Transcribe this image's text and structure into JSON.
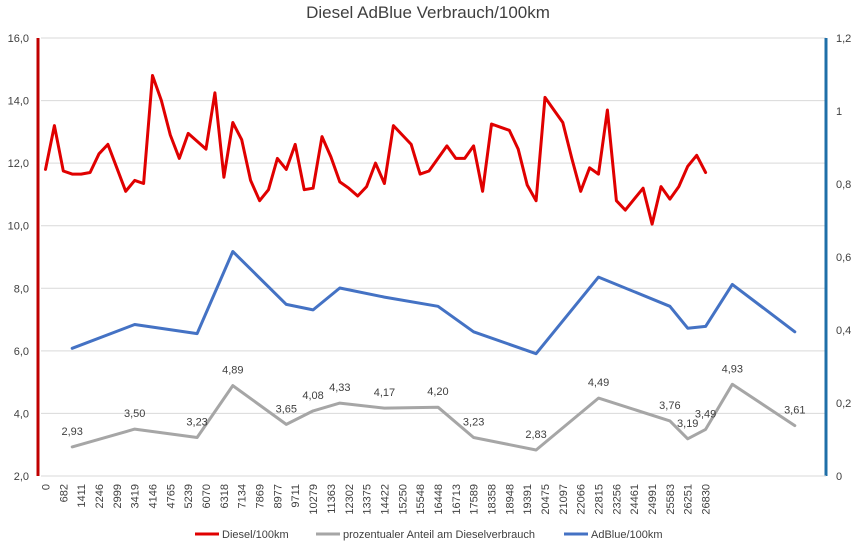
{
  "chart_data": {
    "type": "line",
    "title": "Diesel AdBlue Verbrauch/100km",
    "x_categories": [
      "0",
      "",
      "682",
      "",
      "1411",
      "",
      "2246",
      "",
      "2999",
      "",
      "3419",
      "",
      "4146",
      "",
      "4765",
      "",
      "5239",
      "",
      "6070",
      "",
      "6318",
      "",
      "7134",
      "",
      "7869",
      "",
      "8977",
      "",
      "9711",
      "",
      "10279",
      "",
      "11363",
      "",
      "12302",
      "",
      "13375",
      "",
      "14422",
      "",
      "15250",
      "",
      "15548",
      "",
      "16448",
      "",
      "16713",
      "",
      "17589",
      "",
      "18358",
      "",
      "18948",
      "",
      "19391",
      "",
      "20475",
      "",
      "21097",
      "",
      "22066",
      "",
      "22815",
      "",
      "23256",
      "",
      "24461",
      "",
      "24991",
      "",
      "25583",
      "",
      "26251",
      "",
      "26830",
      ""
    ],
    "x_tick_labels": [
      "0",
      "682",
      "1411",
      "2246",
      "2999",
      "3419",
      "4146",
      "4765",
      "5239",
      "6070",
      "6318",
      "7134",
      "7869",
      "8977",
      "9711",
      "10279",
      "11363",
      "12302",
      "13375",
      "14422",
      "15250",
      "15548",
      "16448",
      "16713",
      "17589",
      "18358",
      "18948",
      "19391",
      "20475",
      "21097",
      "22066",
      "22815",
      "23256",
      "24461",
      "24991",
      "25583",
      "26251",
      "26830"
    ],
    "y_left": {
      "range": [
        2.0,
        16.0
      ],
      "ticks": [
        "2,0",
        "4,0",
        "6,0",
        "8,0",
        "10,0",
        "12,0",
        "14,0",
        "16,0"
      ],
      "color": "#c00000"
    },
    "y_right": {
      "range": [
        0,
        1.2
      ],
      "ticks": [
        "0",
        "0,2",
        "0,4",
        "0,6",
        "0,8",
        "1",
        "1,2"
      ],
      "color": "#1f6fa8"
    },
    "grid": "horizontal",
    "legend_position": "bottom",
    "series": [
      {
        "name": "Diesel/100km",
        "axis": "left",
        "color": "#e00000",
        "points": [
          [
            1,
            11.8
          ],
          [
            2,
            13.2
          ],
          [
            3,
            11.75
          ],
          [
            4,
            11.65
          ],
          [
            5,
            11.65
          ],
          [
            6,
            11.7
          ],
          [
            7,
            12.3
          ],
          [
            8,
            12.6
          ],
          [
            9,
            11.85
          ],
          [
            10,
            11.1
          ],
          [
            11,
            11.45
          ],
          [
            12,
            11.35
          ],
          [
            13,
            14.8
          ],
          [
            14,
            14.0
          ],
          [
            15,
            12.9
          ],
          [
            16,
            12.15
          ],
          [
            17,
            12.95
          ],
          [
            18,
            12.7
          ],
          [
            19,
            12.45
          ],
          [
            20,
            14.25
          ],
          [
            21,
            11.55
          ],
          [
            22,
            13.3
          ],
          [
            23,
            12.75
          ],
          [
            24,
            11.45
          ],
          [
            25,
            10.8
          ],
          [
            26,
            11.15
          ],
          [
            27,
            12.15
          ],
          [
            28,
            11.8
          ],
          [
            29,
            12.6
          ],
          [
            30,
            11.15
          ],
          [
            31,
            11.2
          ],
          [
            32,
            12.85
          ],
          [
            33,
            12.2
          ],
          [
            34,
            11.4
          ],
          [
            35,
            11.2
          ],
          [
            36,
            10.95
          ],
          [
            37,
            11.25
          ],
          [
            38,
            12.0
          ],
          [
            39,
            11.35
          ],
          [
            40,
            13.2
          ],
          [
            41,
            12.9
          ],
          [
            42,
            12.6
          ],
          [
            43,
            11.65
          ],
          [
            44,
            11.75
          ],
          [
            45,
            12.15
          ],
          [
            46,
            12.55
          ],
          [
            47,
            12.15
          ],
          [
            48,
            12.15
          ],
          [
            49,
            12.55
          ],
          [
            50,
            11.1
          ],
          [
            51,
            13.25
          ],
          [
            52,
            13.15
          ],
          [
            53,
            13.05
          ],
          [
            54,
            12.45
          ],
          [
            55,
            11.3
          ],
          [
            56,
            10.8
          ],
          [
            57,
            14.1
          ],
          [
            58,
            13.7
          ],
          [
            59,
            13.3
          ],
          [
            60,
            12.15
          ],
          [
            61,
            11.1
          ],
          [
            62,
            11.85
          ],
          [
            63,
            11.65
          ],
          [
            64,
            13.7
          ],
          [
            65,
            10.8
          ],
          [
            66,
            10.5
          ],
          [
            67,
            10.85
          ],
          [
            68,
            11.2
          ],
          [
            69,
            10.05
          ],
          [
            70,
            11.25
          ],
          [
            71,
            10.85
          ],
          [
            72,
            11.25
          ],
          [
            73,
            11.9
          ],
          [
            74,
            12.25
          ],
          [
            75,
            11.7
          ]
        ]
      },
      {
        "name": "prozentualer Anteil am Dieselverbrauch",
        "axis": "left",
        "color": "#a6a6a6",
        "points": [
          [
            4,
            2.93
          ],
          [
            11,
            3.5
          ],
          [
            18,
            3.23
          ],
          [
            22,
            4.89
          ],
          [
            28,
            3.65
          ],
          [
            31,
            4.08
          ],
          [
            34,
            4.33
          ],
          [
            39,
            4.17
          ],
          [
            45,
            4.2
          ],
          [
            49,
            3.23
          ],
          [
            56,
            2.83
          ],
          [
            63,
            4.49
          ],
          [
            71,
            3.76
          ],
          [
            73,
            3.19
          ],
          [
            75,
            3.49
          ],
          [
            78,
            4.93
          ],
          [
            85,
            3.61
          ]
        ],
        "data_labels": [
          "2,93",
          "3,50",
          "3,23",
          "4,89",
          "3,65",
          "4,08",
          "4,33",
          "4,17",
          "4,20",
          "3,23",
          "2,83",
          "4,49",
          "3,76",
          "3,19",
          "3,49",
          "4,93",
          "3,61"
        ]
      },
      {
        "name": "AdBlue/100km",
        "axis": "right",
        "color": "#4472c4",
        "points": [
          [
            4,
            0.35
          ],
          [
            11,
            0.415
          ],
          [
            18,
            0.39
          ],
          [
            22,
            0.615
          ],
          [
            28,
            0.47
          ],
          [
            31,
            0.455
          ],
          [
            34,
            0.515
          ],
          [
            39,
            0.49
          ],
          [
            45,
            0.465
          ],
          [
            49,
            0.395
          ],
          [
            56,
            0.335
          ],
          [
            63,
            0.545
          ],
          [
            71,
            0.465
          ],
          [
            73,
            0.405
          ],
          [
            75,
            0.41
          ],
          [
            78,
            0.525
          ],
          [
            85,
            0.395
          ]
        ]
      }
    ]
  }
}
